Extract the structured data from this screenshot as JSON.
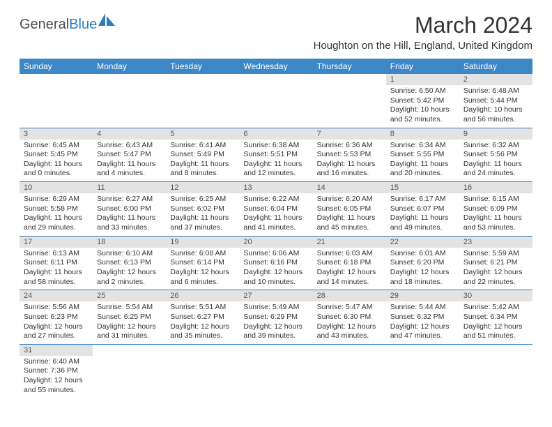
{
  "logo": {
    "t1": "General",
    "t2": "Blue",
    "icon_color": "#2f7bbf"
  },
  "title": "March 2024",
  "location": "Houghton on the Hill, England, United Kingdom",
  "header_bg": "#3d87c7",
  "daynum_bg": "#e3e3e3",
  "border_color": "#2f7bbf",
  "weekdays": [
    "Sunday",
    "Monday",
    "Tuesday",
    "Wednesday",
    "Thursday",
    "Friday",
    "Saturday"
  ],
  "weeks": [
    [
      null,
      null,
      null,
      null,
      null,
      {
        "n": "1",
        "sr": "Sunrise: 6:50 AM",
        "ss": "Sunset: 5:42 PM",
        "d1": "Daylight: 10 hours",
        "d2": "and 52 minutes."
      },
      {
        "n": "2",
        "sr": "Sunrise: 6:48 AM",
        "ss": "Sunset: 5:44 PM",
        "d1": "Daylight: 10 hours",
        "d2": "and 56 minutes."
      }
    ],
    [
      {
        "n": "3",
        "sr": "Sunrise: 6:45 AM",
        "ss": "Sunset: 5:45 PM",
        "d1": "Daylight: 11 hours",
        "d2": "and 0 minutes."
      },
      {
        "n": "4",
        "sr": "Sunrise: 6:43 AM",
        "ss": "Sunset: 5:47 PM",
        "d1": "Daylight: 11 hours",
        "d2": "and 4 minutes."
      },
      {
        "n": "5",
        "sr": "Sunrise: 6:41 AM",
        "ss": "Sunset: 5:49 PM",
        "d1": "Daylight: 11 hours",
        "d2": "and 8 minutes."
      },
      {
        "n": "6",
        "sr": "Sunrise: 6:38 AM",
        "ss": "Sunset: 5:51 PM",
        "d1": "Daylight: 11 hours",
        "d2": "and 12 minutes."
      },
      {
        "n": "7",
        "sr": "Sunrise: 6:36 AM",
        "ss": "Sunset: 5:53 PM",
        "d1": "Daylight: 11 hours",
        "d2": "and 16 minutes."
      },
      {
        "n": "8",
        "sr": "Sunrise: 6:34 AM",
        "ss": "Sunset: 5:55 PM",
        "d1": "Daylight: 11 hours",
        "d2": "and 20 minutes."
      },
      {
        "n": "9",
        "sr": "Sunrise: 6:32 AM",
        "ss": "Sunset: 5:56 PM",
        "d1": "Daylight: 11 hours",
        "d2": "and 24 minutes."
      }
    ],
    [
      {
        "n": "10",
        "sr": "Sunrise: 6:29 AM",
        "ss": "Sunset: 5:58 PM",
        "d1": "Daylight: 11 hours",
        "d2": "and 29 minutes."
      },
      {
        "n": "11",
        "sr": "Sunrise: 6:27 AM",
        "ss": "Sunset: 6:00 PM",
        "d1": "Daylight: 11 hours",
        "d2": "and 33 minutes."
      },
      {
        "n": "12",
        "sr": "Sunrise: 6:25 AM",
        "ss": "Sunset: 6:02 PM",
        "d1": "Daylight: 11 hours",
        "d2": "and 37 minutes."
      },
      {
        "n": "13",
        "sr": "Sunrise: 6:22 AM",
        "ss": "Sunset: 6:04 PM",
        "d1": "Daylight: 11 hours",
        "d2": "and 41 minutes."
      },
      {
        "n": "14",
        "sr": "Sunrise: 6:20 AM",
        "ss": "Sunset: 6:05 PM",
        "d1": "Daylight: 11 hours",
        "d2": "and 45 minutes."
      },
      {
        "n": "15",
        "sr": "Sunrise: 6:17 AM",
        "ss": "Sunset: 6:07 PM",
        "d1": "Daylight: 11 hours",
        "d2": "and 49 minutes."
      },
      {
        "n": "16",
        "sr": "Sunrise: 6:15 AM",
        "ss": "Sunset: 6:09 PM",
        "d1": "Daylight: 11 hours",
        "d2": "and 53 minutes."
      }
    ],
    [
      {
        "n": "17",
        "sr": "Sunrise: 6:13 AM",
        "ss": "Sunset: 6:11 PM",
        "d1": "Daylight: 11 hours",
        "d2": "and 58 minutes."
      },
      {
        "n": "18",
        "sr": "Sunrise: 6:10 AM",
        "ss": "Sunset: 6:13 PM",
        "d1": "Daylight: 12 hours",
        "d2": "and 2 minutes."
      },
      {
        "n": "19",
        "sr": "Sunrise: 6:08 AM",
        "ss": "Sunset: 6:14 PM",
        "d1": "Daylight: 12 hours",
        "d2": "and 6 minutes."
      },
      {
        "n": "20",
        "sr": "Sunrise: 6:06 AM",
        "ss": "Sunset: 6:16 PM",
        "d1": "Daylight: 12 hours",
        "d2": "and 10 minutes."
      },
      {
        "n": "21",
        "sr": "Sunrise: 6:03 AM",
        "ss": "Sunset: 6:18 PM",
        "d1": "Daylight: 12 hours",
        "d2": "and 14 minutes."
      },
      {
        "n": "22",
        "sr": "Sunrise: 6:01 AM",
        "ss": "Sunset: 6:20 PM",
        "d1": "Daylight: 12 hours",
        "d2": "and 18 minutes."
      },
      {
        "n": "23",
        "sr": "Sunrise: 5:59 AM",
        "ss": "Sunset: 6:21 PM",
        "d1": "Daylight: 12 hours",
        "d2": "and 22 minutes."
      }
    ],
    [
      {
        "n": "24",
        "sr": "Sunrise: 5:56 AM",
        "ss": "Sunset: 6:23 PM",
        "d1": "Daylight: 12 hours",
        "d2": "and 27 minutes."
      },
      {
        "n": "25",
        "sr": "Sunrise: 5:54 AM",
        "ss": "Sunset: 6:25 PM",
        "d1": "Daylight: 12 hours",
        "d2": "and 31 minutes."
      },
      {
        "n": "26",
        "sr": "Sunrise: 5:51 AM",
        "ss": "Sunset: 6:27 PM",
        "d1": "Daylight: 12 hours",
        "d2": "and 35 minutes."
      },
      {
        "n": "27",
        "sr": "Sunrise: 5:49 AM",
        "ss": "Sunset: 6:29 PM",
        "d1": "Daylight: 12 hours",
        "d2": "and 39 minutes."
      },
      {
        "n": "28",
        "sr": "Sunrise: 5:47 AM",
        "ss": "Sunset: 6:30 PM",
        "d1": "Daylight: 12 hours",
        "d2": "and 43 minutes."
      },
      {
        "n": "29",
        "sr": "Sunrise: 5:44 AM",
        "ss": "Sunset: 6:32 PM",
        "d1": "Daylight: 12 hours",
        "d2": "and 47 minutes."
      },
      {
        "n": "30",
        "sr": "Sunrise: 5:42 AM",
        "ss": "Sunset: 6:34 PM",
        "d1": "Daylight: 12 hours",
        "d2": "and 51 minutes."
      }
    ],
    [
      {
        "n": "31",
        "sr": "Sunrise: 6:40 AM",
        "ss": "Sunset: 7:36 PM",
        "d1": "Daylight: 12 hours",
        "d2": "and 55 minutes."
      },
      null,
      null,
      null,
      null,
      null,
      null
    ]
  ]
}
